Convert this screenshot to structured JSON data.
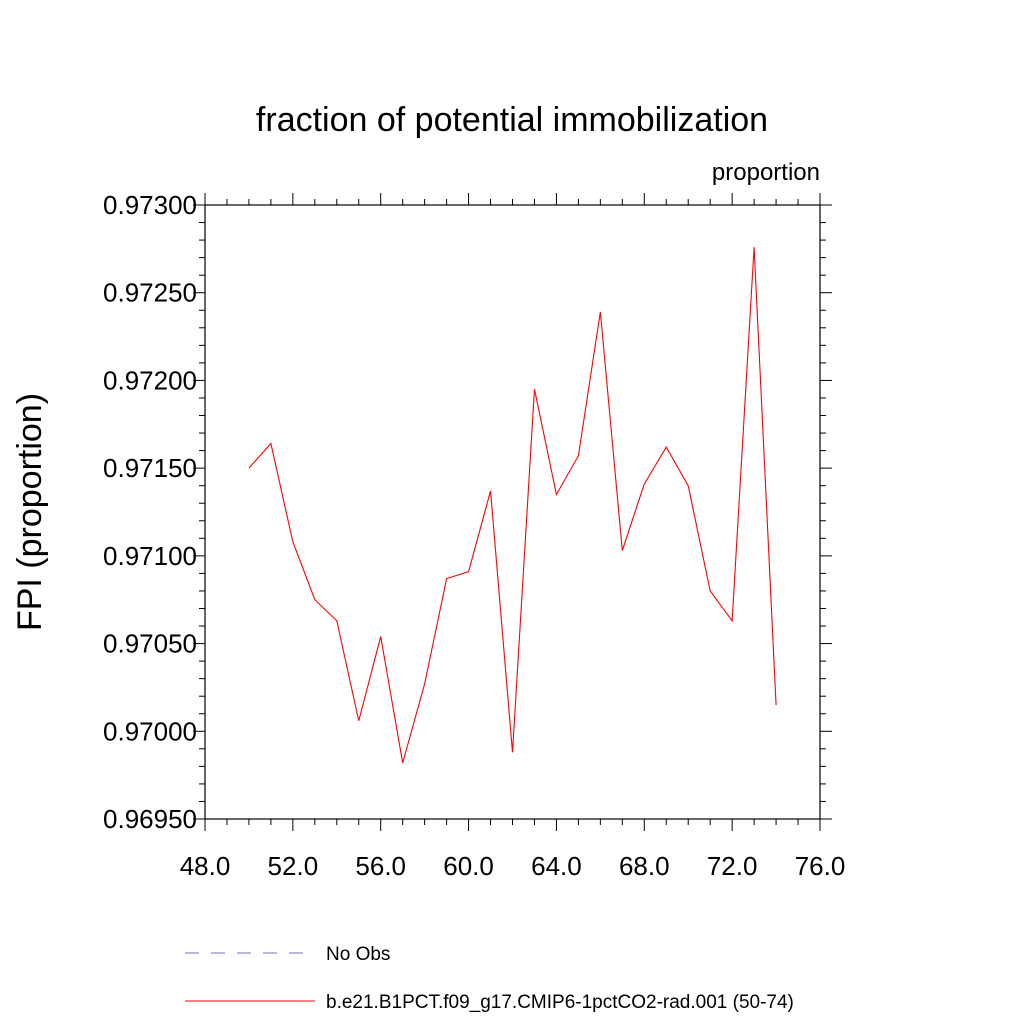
{
  "chart_data": {
    "type": "line",
    "title": "fraction of potential immobilization",
    "units_label": "proportion",
    "ylabel": "FPI  (proportion)",
    "xlabel": "",
    "xlim": [
      48,
      76
    ],
    "ylim": [
      0.9695,
      0.973
    ],
    "x_ticks": [
      48,
      52,
      56,
      60,
      64,
      68,
      72,
      76
    ],
    "x_tick_labels": [
      "48.0",
      "52.0",
      "56.0",
      "60.0",
      "64.0",
      "68.0",
      "72.0",
      "76.0"
    ],
    "y_ticks": [
      0.9695,
      0.97,
      0.9705,
      0.971,
      0.9715,
      0.972,
      0.9725,
      0.973
    ],
    "y_tick_labels": [
      "0.96950",
      "0.97000",
      "0.97050",
      "0.97100",
      "0.97150",
      "0.97200",
      "0.97250",
      "0.97300"
    ],
    "grid": false,
    "legend_position": "bottom",
    "series": [
      {
        "name": "No Obs",
        "color": "#7b68c8",
        "style": "dashed",
        "x": [],
        "y": []
      },
      {
        "name": "b.e21.B1PCT.f09_g17.CMIP6-1pctCO2-rad.001 (50-74)",
        "color": "#ff0000",
        "style": "solid",
        "x": [
          50,
          51,
          52,
          53,
          54,
          55,
          56,
          57,
          58,
          59,
          60,
          61,
          62,
          63,
          64,
          65,
          66,
          67,
          68,
          69,
          70,
          71,
          72,
          73,
          74
        ],
        "y": [
          0.9715,
          0.97164,
          0.97108,
          0.97075,
          0.97063,
          0.97006,
          0.97054,
          0.96982,
          0.97027,
          0.97087,
          0.97091,
          0.97137,
          0.96988,
          0.97195,
          0.97135,
          0.97157,
          0.97239,
          0.97103,
          0.97141,
          0.97162,
          0.9714,
          0.9708,
          0.97063,
          0.97276,
          0.97015
        ]
      }
    ]
  }
}
